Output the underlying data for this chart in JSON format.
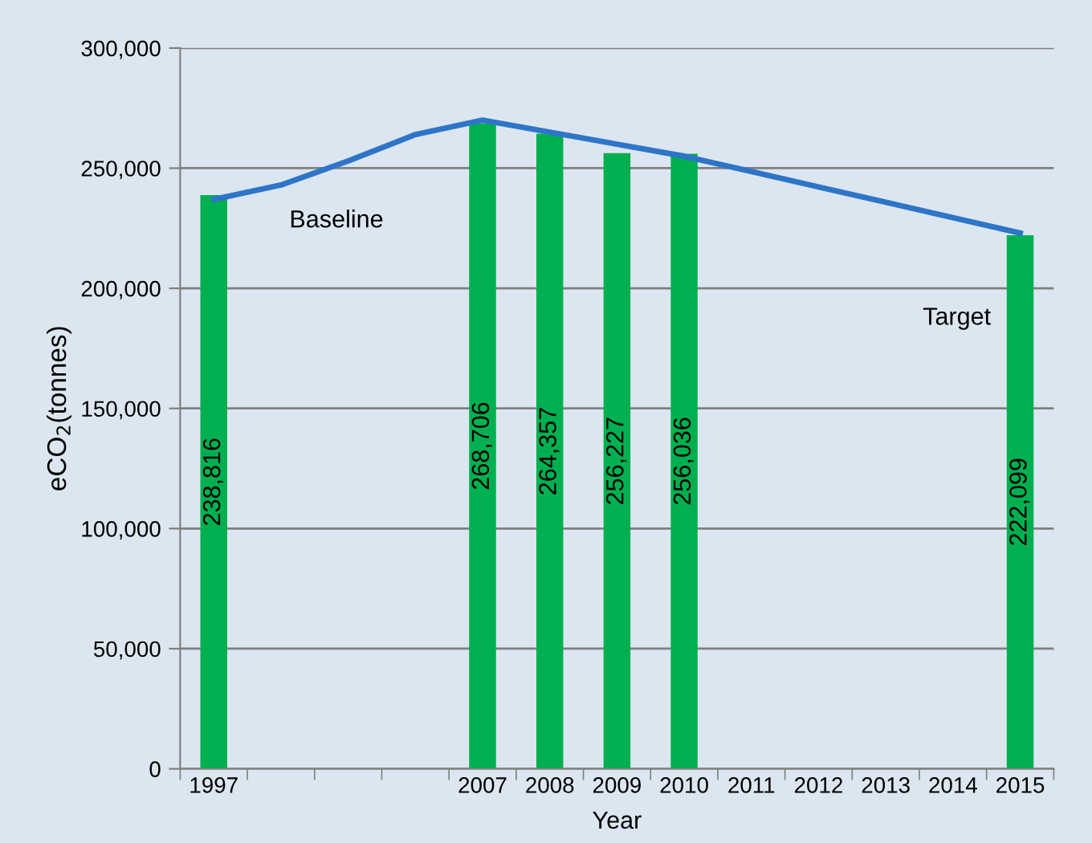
{
  "chart_data": {
    "type": "bar",
    "xlabel": "Year",
    "ylabel": "eCO$_{2}$(tonnes)",
    "categories": [
      "1997",
      null,
      null,
      null,
      "2007",
      "2008",
      "2009",
      "2010",
      "2011",
      "2012",
      "2013",
      "2014",
      "2015"
    ],
    "series": [
      {
        "color": "#00b050",
        "values": [
          238816,
          null,
          null,
          null,
          268706,
          264357,
          256227,
          256036,
          null,
          null,
          null,
          null,
          222099
        ],
        "value_labels": [
          "238,816",
          null,
          null,
          null,
          "268,706",
          "264,357",
          "256,227",
          "256,036",
          null,
          null,
          null,
          null,
          "222,099"
        ]
      },
      {
        "type": "line",
        "color": "#2e75c8",
        "values": [
          237000,
          243000,
          253000,
          264000,
          270000,
          265000,
          260000,
          255000,
          248600,
          242200,
          235800,
          229400,
          223000
        ]
      }
    ],
    "annotations": [
      "Baseline",
      "Target"
    ],
    "ylim": [
      0,
      300000
    ],
    "yticks": [
      0,
      {
        "value": 50000,
        "label": "50,000"
      },
      {
        "value": 100000,
        "label": "100,000"
      },
      {
        "value": 150000,
        "label": "150,000"
      },
      {
        "value": 200000,
        "label": "200,000"
      },
      {
        "value": 250000,
        "label": "250,000"
      },
      {
        "value": 300000,
        "label": "300,000"
      }
    ],
    "grid": "y",
    "legend": false
  }
}
